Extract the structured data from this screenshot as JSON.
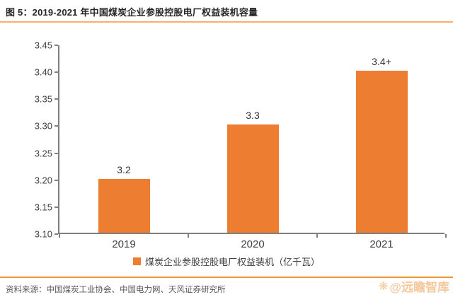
{
  "figure": {
    "title": "图 5：2019-2021 年中国煤炭企业参股控股电厂权益装机容量",
    "source": "资料来源：中国煤炭工业协会、中国电力网、天风证券研究所",
    "watermark": "@远瞻智库"
  },
  "colors": {
    "bar": "#ed7d31",
    "rule_top": "#f4b06e",
    "rule_bottom": "#ee9434",
    "axis": "#7f7f7f",
    "tick_text": "#404040",
    "source_text": "#595959",
    "watermark_text": "#ee9a4d"
  },
  "chart_data": {
    "type": "bar",
    "categories": [
      "2019",
      "2020",
      "2021"
    ],
    "values": [
      3.2,
      3.3,
      3.4
    ],
    "value_labels": [
      "3.2",
      "3.3",
      "3.4+"
    ],
    "legend": [
      "煤炭企业参股控股电厂权益装机（亿千瓦）"
    ],
    "legend_position": "bottom",
    "title": "图 5：2019-2021 年中国煤炭企业参股控股电厂权益装机容量",
    "xlabel": "",
    "ylabel": "",
    "ylim": [
      3.1,
      3.45
    ],
    "yticks": [
      3.1,
      3.15,
      3.2,
      3.25,
      3.3,
      3.35,
      3.4,
      3.45
    ],
    "grid": false
  }
}
